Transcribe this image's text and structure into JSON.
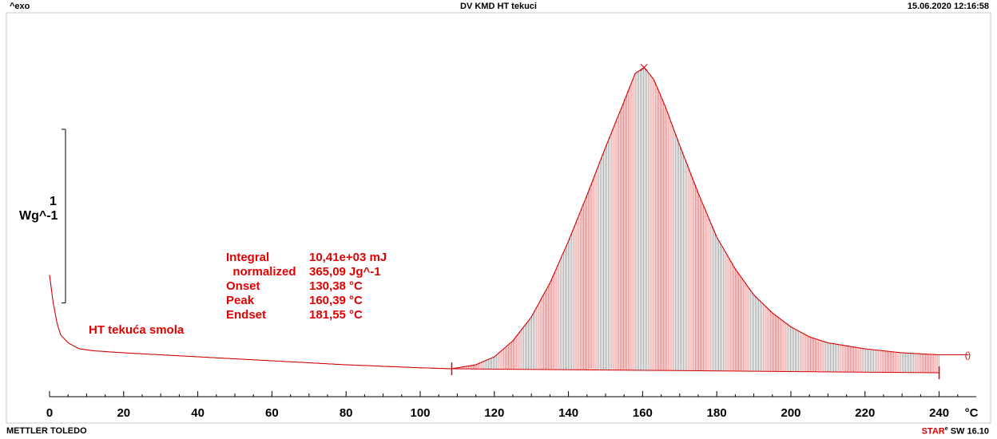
{
  "header": {
    "left": "^exo",
    "title": "DV KMD HT tekuci",
    "datetime": "15.06.2020 12:16:58"
  },
  "footer": {
    "left": "METTLER TOLEDO",
    "right_brand": "STAR",
    "right_mark": "e",
    "right_version": "SW 16.10"
  },
  "chart_data": {
    "type": "line",
    "xlabel": "°C",
    "x_ticks": [
      0,
      20,
      40,
      60,
      80,
      100,
      120,
      140,
      160,
      180,
      200,
      220,
      240
    ],
    "xlim": [
      0,
      250
    ],
    "y_scale_bar": {
      "value": "1",
      "unit": "Wg^-1"
    },
    "series": [
      {
        "name": "HT tekuća smola",
        "x": [
          0,
          1,
          2,
          3,
          5,
          8,
          12,
          20,
          40,
          60,
          80,
          100,
          108.5,
          115,
          120,
          125,
          130,
          135,
          140,
          145,
          150,
          155,
          158,
          160.4,
          163,
          166,
          170,
          175,
          180,
          185,
          190,
          195,
          200,
          205,
          210,
          220,
          230,
          240,
          248
        ],
        "y": [
          0.37,
          0.23,
          0.13,
          0.07,
          0.03,
          0.0,
          -0.01,
          -0.02,
          -0.04,
          -0.06,
          -0.08,
          -0.095,
          -0.1,
          -0.08,
          -0.04,
          0.04,
          0.16,
          0.33,
          0.54,
          0.77,
          1.01,
          1.24,
          1.38,
          1.41,
          1.35,
          1.22,
          1.02,
          0.78,
          0.56,
          0.4,
          0.27,
          0.18,
          0.11,
          0.06,
          0.03,
          0.0,
          -0.02,
          -0.03,
          -0.03
        ]
      }
    ],
    "integration": {
      "start_x": 108.5,
      "end_x": 240,
      "baseline_y_start": -0.1,
      "baseline_y_end": -0.12,
      "peak_x": 160.39,
      "peak_y": 1.41
    },
    "annotations": [
      {
        "label": "Integral",
        "value": "10,41e+03 mJ"
      },
      {
        "label": "  normalized",
        "value": "365,09 Jg^-1"
      },
      {
        "label": "Onset",
        "value": "130,38 °C"
      },
      {
        "label": "Peak",
        "value": "160,39 °C"
      },
      {
        "label": "Endset",
        "value": "181,55 °C"
      }
    ],
    "curve_label": "HT tekuća smola",
    "colors": {
      "curve": "#d40000",
      "text": "#e30000",
      "axis": "#000000"
    }
  }
}
